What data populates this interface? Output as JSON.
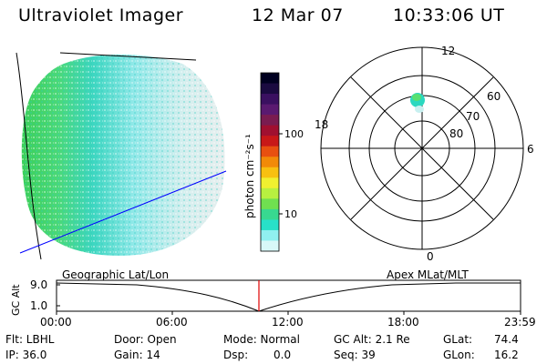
{
  "header": {
    "instrument": "Ultraviolet Imager",
    "date": "12 Mar 07",
    "time": "10:33:06 UT"
  },
  "colorbar": {
    "unit_label": "photon cm⁻²s⁻¹",
    "ticks": [
      "100",
      "10"
    ],
    "colors": [
      "#000020",
      "#1a0a40",
      "#3a1060",
      "#5a1a70",
      "#7a1c50",
      "#a01030",
      "#c81818",
      "#e85010",
      "#f28a08",
      "#f8c010",
      "#f0f030",
      "#b8f040",
      "#70e050",
      "#38d890",
      "#28e0c8",
      "#90f0f0",
      "#d8f8f8"
    ]
  },
  "polar": {
    "mlt_labels": {
      "top": "12",
      "left": "18",
      "right": "6",
      "bottom": "0"
    },
    "lat_labels": [
      "60",
      "70",
      "80"
    ]
  },
  "timeline": {
    "ylabel": "GC Alt",
    "yticks": [
      "9.0",
      "1.0"
    ],
    "left_caption": "Geographic Lat/Lon",
    "right_caption": "Apex MLat/MLT",
    "xticks": [
      "00:00",
      "06:00",
      "12:00",
      "18:00",
      "23:59"
    ],
    "marker_time": "10:33"
  },
  "footer": {
    "flt": "Flt: LBHL",
    "ip": "IP: 36.0",
    "door": "Door: Open",
    "gain": "Gain: 14",
    "mode": "Mode: Normal",
    "dsp": "Dsp:",
    "dsp_value": "0.0",
    "gc_alt": "GC Alt: 2.1 Re",
    "seq": "Seq: 39",
    "glat_label": "GLat:",
    "glat_value": "74.4",
    "glon_label": "GLon:",
    "glon_value": "16.2"
  },
  "colors": {
    "marker": "#e00000",
    "map_line": "#0000ff"
  }
}
